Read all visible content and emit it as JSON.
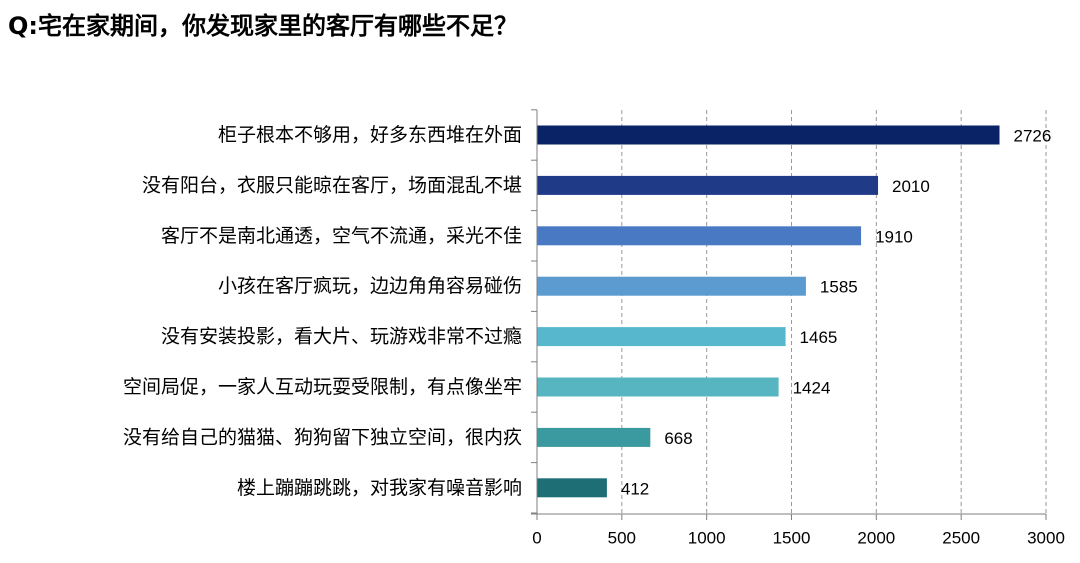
{
  "title": "Q:宅在家期间，你发现家里的客厅有哪些不足？",
  "chart_data": {
    "type": "bar",
    "orientation": "horizontal",
    "categories": [
      "柜子根本不够用，好多东西堆在外面",
      "没有阳台，衣服只能晾在客厅，场面混乱不堪",
      "客厅不是南北通透，空气不流通，采光不佳",
      "小孩在客厅疯玩，边边角角容易碰伤",
      "没有安装投影，看大片、玩游戏非常不过瘾",
      "空间局促，一家人互动玩耍受限制，有点像坐牢",
      "没有给自己的猫猫、狗狗留下独立空间，很内疚",
      "楼上蹦蹦跳跳，对我家有噪音影响"
    ],
    "values": [
      2726,
      2010,
      1910,
      1585,
      1465,
      1424,
      668,
      412
    ],
    "value_labels": [
      "2726",
      "2010",
      "1910",
      "1585",
      "1465",
      "1424",
      "668",
      "412"
    ],
    "bar_colors": [
      "#0a2366",
      "#1f3b87",
      "#4a79c4",
      "#5b9bcf",
      "#57b7cd",
      "#57b5c1",
      "#3a9aa0",
      "#1d6e75"
    ],
    "xlim": [
      0,
      3000
    ],
    "x_ticks": [
      "0",
      "500",
      "1000",
      "1500",
      "2000",
      "2500",
      "3000"
    ],
    "x_tick_values": [
      0,
      500,
      1000,
      1500,
      2000,
      2500,
      3000
    ],
    "grid": "vertical dashed",
    "legend": "none",
    "xlabel": "",
    "ylabel": ""
  }
}
